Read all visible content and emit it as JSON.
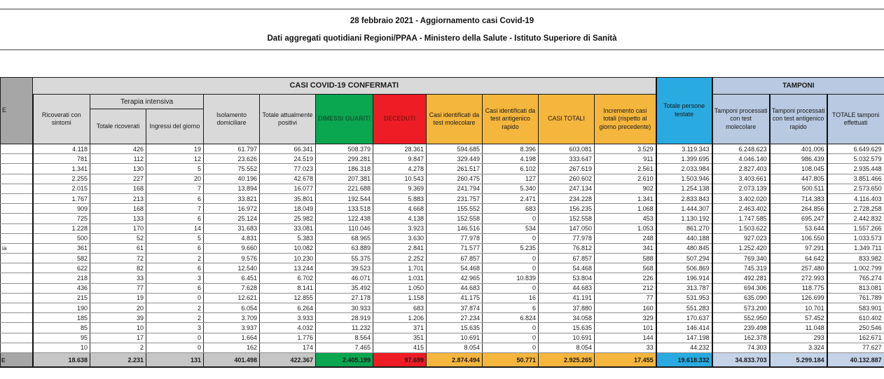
{
  "header": {
    "title": "28 febbraio 2021 - Aggiornamento casi Covid-19",
    "subtitle": "Dati aggregati quotidiani Regioni/PPAA - Ministero della Salute - Istituto Superiore di Sanità"
  },
  "table": {
    "group_casi": "CASI COVID-19 CONFERMATI",
    "group_tamponi": "TAMPONI",
    "terapia_group": "Terapia intensiva",
    "region_header_fragment": "E",
    "columns": [
      "Ricoverati con sintomi",
      "Totale ricoverati",
      "Ingressi del giorno",
      "Isolamento domiciliare",
      "Totale attualmente positivi",
      "DIMESSI GUARITI",
      "DECEDUTI",
      "Casi identificati da test molecolare",
      "Casi identificati da test antigenico rapido",
      "CASI TOTALI",
      "Incremento casi totali (rispetto al giorno precedente)",
      "Totale persone testate",
      "Tamponi processati con test molecolare",
      "Tamponi processati con test antigenico rapido",
      "TOTALE tamponi effettuati"
    ],
    "colors": {
      "green": "#0ba650",
      "red": "#ee1c25",
      "yellow": "#f5b63d",
      "cyan": "#29abe2",
      "tamponi_blue": "#b8c9e1"
    },
    "rows": [
      {
        "region_fragment": "",
        "values": [
          "4.118",
          "426",
          "19",
          "61.797",
          "66.341",
          "508.379",
          "28.361",
          "594.685",
          "8.396",
          "603.081",
          "3.529",
          "3.119.343",
          "6.248.623",
          "401.006",
          "6.649.629"
        ]
      },
      {
        "region_fragment": "",
        "values": [
          "781",
          "112",
          "12",
          "23.626",
          "24.519",
          "299.281",
          "9.847",
          "329.449",
          "4.198",
          "333.647",
          "911",
          "1.399.695",
          "4.046.140",
          "986.439",
          "5.032.579"
        ]
      },
      {
        "region_fragment": "",
        "values": [
          "1.341",
          "130",
          "5",
          "75.552",
          "77.023",
          "186.318",
          "4.278",
          "261.517",
          "6.102",
          "267.619",
          "2.561",
          "2.033.984",
          "2.827.403",
          "108.045",
          "2.935.448"
        ]
      },
      {
        "region_fragment": "",
        "values": [
          "2.255",
          "227",
          "20",
          "40.196",
          "42.678",
          "207.381",
          "10.543",
          "260.475",
          "127",
          "260.602",
          "2.610",
          "1.503.946",
          "3.403.661",
          "447.805",
          "3.851.466"
        ]
      },
      {
        "region_fragment": "",
        "values": [
          "2.015",
          "168",
          "7",
          "13.894",
          "16.077",
          "221.688",
          "9.369",
          "241.794",
          "5.340",
          "247.134",
          "902",
          "1.254.138",
          "2.073.139",
          "500.511",
          "2.573.650"
        ]
      },
      {
        "region_fragment": "",
        "values": [
          "1.767",
          "213",
          "6",
          "33.821",
          "35.801",
          "192.544",
          "5.883",
          "231.757",
          "2.471",
          "234.228",
          "1.341",
          "2.833.843",
          "3.402.020",
          "714.383",
          "4.116.403"
        ]
      },
      {
        "region_fragment": "",
        "values": [
          "909",
          "168",
          "7",
          "16.972",
          "18.049",
          "133.518",
          "4.668",
          "155.552",
          "683",
          "156.235",
          "1.068",
          "1.444.307",
          "2.463.402",
          "264.856",
          "2.728.258"
        ]
      },
      {
        "region_fragment": "",
        "values": [
          "725",
          "133",
          "6",
          "25.124",
          "25.982",
          "122.438",
          "4.138",
          "152.558",
          "0",
          "152.558",
          "453",
          "1.130.192",
          "1.747.585",
          "695.247",
          "2.442.832"
        ]
      },
      {
        "region_fragment": "",
        "values": [
          "1.228",
          "170",
          "14",
          "31.683",
          "33.081",
          "110.046",
          "3.923",
          "146.516",
          "534",
          "147.050",
          "1.053",
          "861.270",
          "1.503.622",
          "53.644",
          "1.557.266"
        ]
      },
      {
        "region_fragment": "",
        "values": [
          "500",
          "52",
          "5",
          "4.831",
          "5.383",
          "68.965",
          "3.630",
          "77.978",
          "0",
          "77.978",
          "248",
          "440.188",
          "927.023",
          "106.550",
          "1.033.573"
        ]
      },
      {
        "region_fragment": "ia",
        "values": [
          "361",
          "61",
          "6",
          "9.660",
          "10.082",
          "63.889",
          "2.841",
          "71.577",
          "5.235",
          "76.812",
          "341",
          "480.845",
          "1.252.420",
          "97.291",
          "1.349.711"
        ]
      },
      {
        "region_fragment": "",
        "values": [
          "582",
          "72",
          "2",
          "9.576",
          "10.230",
          "55.375",
          "2.252",
          "67.857",
          "0",
          "67.857",
          "588",
          "507.294",
          "769.340",
          "64.642",
          "833.982"
        ]
      },
      {
        "region_fragment": "",
        "values": [
          "622",
          "82",
          "6",
          "12.540",
          "13.244",
          "39.523",
          "1.701",
          "54.468",
          "0",
          "54.468",
          "568",
          "506.869",
          "745.319",
          "257.480",
          "1.002.799"
        ]
      },
      {
        "region_fragment": "",
        "values": [
          "218",
          "33",
          "3",
          "6.451",
          "6.702",
          "46.071",
          "1.031",
          "42.965",
          "10.839",
          "53.804",
          "226",
          "196.914",
          "492.281",
          "272.993",
          "765.274"
        ]
      },
      {
        "region_fragment": "",
        "values": [
          "436",
          "77",
          "6",
          "7.628",
          "8.141",
          "35.492",
          "1.050",
          "44.683",
          "0",
          "44.683",
          "212",
          "313.787",
          "694.306",
          "118.775",
          "813.081"
        ]
      },
      {
        "region_fragment": "",
        "values": [
          "215",
          "19",
          "0",
          "12.621",
          "12.855",
          "27.178",
          "1.158",
          "41.175",
          "16",
          "41.191",
          "77",
          "531.953",
          "635.090",
          "126.699",
          "761.789"
        ]
      },
      {
        "region_fragment": "",
        "values": [
          "190",
          "20",
          "2",
          "6.054",
          "6.264",
          "30.933",
          "683",
          "37.874",
          "6",
          "37.880",
          "160",
          "551.283",
          "573.200",
          "10.701",
          "583.901"
        ]
      },
      {
        "region_fragment": "",
        "values": [
          "185",
          "39",
          "2",
          "3.709",
          "3.933",
          "28.919",
          "1.206",
          "27.234",
          "6.824",
          "34.058",
          "329",
          "170.637",
          "552.950",
          "57.452",
          "610.402"
        ]
      },
      {
        "region_fragment": "",
        "values": [
          "85",
          "10",
          "3",
          "3.937",
          "4.032",
          "11.232",
          "371",
          "15.635",
          "0",
          "15.635",
          "101",
          "146.414",
          "239.498",
          "11.048",
          "250.546"
        ]
      },
      {
        "region_fragment": "",
        "values": [
          "95",
          "17",
          "0",
          "1.664",
          "1.776",
          "8.564",
          "351",
          "10.691",
          "0",
          "10.691",
          "144",
          "147.198",
          "162.378",
          "293",
          "162.671"
        ]
      },
      {
        "region_fragment": "",
        "values": [
          "10",
          "2",
          "0",
          "162",
          "174",
          "7.465",
          "415",
          "8.054",
          "0",
          "8.054",
          "33",
          "44.232",
          "74.303",
          "3.324",
          "77.627"
        ]
      }
    ],
    "total": {
      "region_fragment": "E",
      "values": [
        "18.638",
        "2.231",
        "131",
        "401.498",
        "422.367",
        "2.405.199",
        "97.699",
        "2.874.494",
        "50.771",
        "2.925.265",
        "17.455",
        "19.618.332",
        "34.833.703",
        "5.299.184",
        "40.132.887"
      ]
    }
  }
}
